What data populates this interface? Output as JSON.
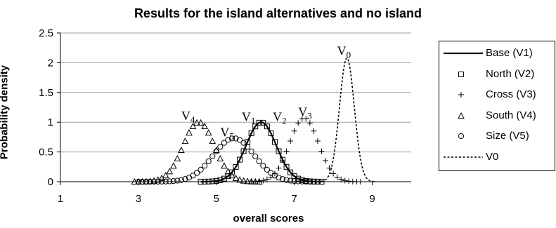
{
  "chart_data": {
    "type": "line",
    "title": "Results for the island alternatives and no island",
    "xlabel": "overall scores",
    "ylabel": "Probability density",
    "xlim": [
      1,
      10
    ],
    "ylim": [
      0,
      2.5
    ],
    "x_ticks": [
      "1",
      "3",
      "5",
      "7",
      "9"
    ],
    "y_ticks": [
      "0",
      "0.5",
      "1",
      "1.5",
      "2",
      "2.5"
    ],
    "grid": "horizontal",
    "legend_position": "right",
    "series": [
      {
        "name": "Base (V1)",
        "marker": "line",
        "style": "solid",
        "mean": 6.15,
        "sd": 0.39,
        "peak": 1.0,
        "from": 4.6,
        "to": 7.7
      },
      {
        "name": "North (V2)",
        "marker": "square",
        "mean": 6.15,
        "sd": 0.39,
        "peak": 1.0,
        "from": 4.6,
        "to": 7.75
      },
      {
        "name": "Cross (V3)",
        "marker": "plus",
        "mean": 7.25,
        "sd": 0.37,
        "peak": 1.07,
        "from": 5.9,
        "to": 8.7
      },
      {
        "name": "South (V4)",
        "marker": "triangle",
        "mean": 4.55,
        "sd": 0.4,
        "peak": 1.0,
        "from": 2.9,
        "to": 6.15
      },
      {
        "name": "Size (V5)",
        "marker": "circle",
        "mean": 5.45,
        "sd": 0.53,
        "peak": 0.73,
        "from": 3.0,
        "to": 7.6
      },
      {
        "name": "V0",
        "marker": "line",
        "style": "dashed",
        "mean": 8.35,
        "sd": 0.19,
        "peak": 2.08,
        "from": 7.0,
        "to": 9.1
      }
    ],
    "annotations": [
      {
        "base": "V",
        "sub": "0",
        "x": 8.1,
        "y": 2.13
      },
      {
        "base": "V",
        "sub": "1",
        "x": 5.65,
        "y": 1.02
      },
      {
        "base": "V",
        "sub": "2",
        "x": 6.45,
        "y": 1.02
      },
      {
        "base": "V",
        "sub": "3",
        "x": 7.1,
        "y": 1.1
      },
      {
        "base": "V",
        "sub": "4",
        "x": 4.1,
        "y": 1.04
      },
      {
        "base": "V",
        "sub": "5",
        "x": 5.1,
        "y": 0.76
      }
    ]
  }
}
